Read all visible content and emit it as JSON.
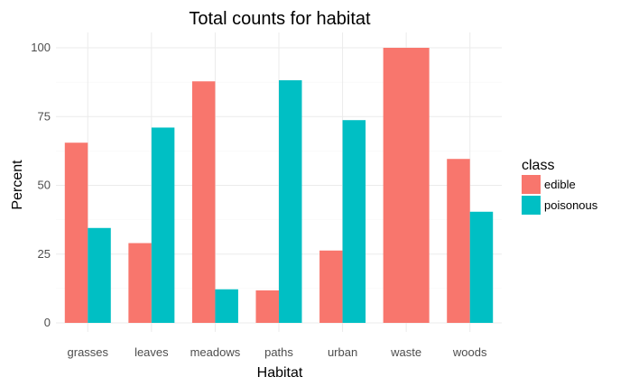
{
  "chart_data": {
    "type": "bar",
    "title": "Total counts for habitat",
    "xlabel": "Habitat",
    "ylabel": "Percent",
    "categories": [
      "grasses",
      "leaves",
      "meadows",
      "paths",
      "urban",
      "waste",
      "woods"
    ],
    "series": [
      {
        "name": "edible",
        "values": [
          65.5,
          29,
          87.8,
          11.8,
          26.3,
          100,
          59.6
        ]
      },
      {
        "name": "poisonous",
        "values": [
          34.5,
          71,
          12.2,
          88.2,
          73.7,
          0,
          40.4
        ]
      }
    ],
    "ylim": [
      0,
      105
    ],
    "yticks": [
      0,
      25,
      50,
      75,
      100
    ],
    "ytick_labels": [
      "0",
      "25",
      "50",
      "75",
      "100"
    ],
    "grid": true,
    "legend": {
      "title": "class",
      "position": "right"
    },
    "colors": {
      "edible": "#F8766D",
      "poisonous": "#00BFC4"
    }
  }
}
